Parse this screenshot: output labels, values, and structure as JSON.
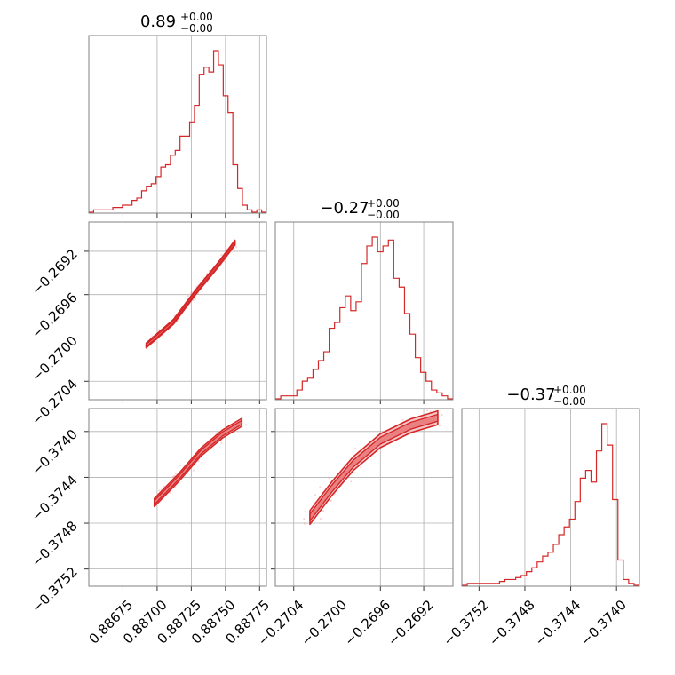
{
  "chart_data": {
    "type": "corner",
    "parameters": [
      {
        "title_value": "0.89",
        "title_plus": "+0.00",
        "title_minus": "−0.00",
        "range": [
          0.8865,
          0.8878
        ],
        "ticks": [
          0.88675,
          0.887,
          0.88725,
          0.8875,
          0.88775
        ],
        "tick_labels": [
          "0.88675",
          "0.88700",
          "0.88725",
          "0.88750",
          "0.88775"
        ],
        "hist_counts": [
          0,
          1,
          1,
          1,
          1,
          2,
          2,
          3,
          3,
          5,
          6,
          9,
          11,
          12,
          15,
          19,
          20,
          24,
          26,
          32,
          32,
          38,
          45,
          58,
          61,
          59,
          68,
          62,
          49,
          42,
          20,
          10,
          3,
          1,
          0,
          1,
          0
        ]
      },
      {
        "title_value": "−0.27",
        "title_plus": "+0.00",
        "title_minus": "−0.00",
        "range": [
          -0.27057,
          -0.26893
        ],
        "ticks": [
          -0.2704,
          -0.27,
          -0.2696,
          -0.2692
        ],
        "tick_labels": [
          "−0.2704",
          "−0.2700",
          "−0.2696",
          "−0.2692"
        ],
        "hist_counts": [
          0,
          1,
          1,
          1,
          3,
          6,
          7,
          10,
          13,
          16,
          24,
          26,
          31,
          35,
          30,
          33,
          46,
          52,
          55,
          50,
          52,
          54,
          41,
          38,
          29,
          22,
          14,
          9,
          6,
          3,
          2,
          1,
          0
        ]
      },
      {
        "title_value": "−0.37",
        "title_plus": "+0.00",
        "title_minus": "−0.00",
        "range": [
          -0.37535,
          -0.3738
        ],
        "ticks": [
          -0.3752,
          -0.3748,
          -0.3744,
          -0.374
        ],
        "tick_labels": [
          "−0.3752",
          "−0.3748",
          "−0.3744",
          "−0.3740"
        ],
        "hist_counts": [
          0,
          1,
          1,
          1,
          1,
          1,
          1,
          2,
          3,
          3,
          4,
          5,
          7,
          9,
          12,
          15,
          17,
          21,
          26,
          30,
          34,
          43,
          55,
          59,
          53,
          69,
          83,
          72,
          44,
          13,
          3,
          1,
          0
        ]
      }
    ],
    "pairs": [
      {
        "x": 0,
        "y": 1,
        "ridge": [
          [
            0.88692,
            -0.27007
          ],
          [
            0.88712,
            -0.26985
          ],
          [
            0.88728,
            -0.26958
          ],
          [
            0.88745,
            -0.26932
          ],
          [
            0.88757,
            -0.26912
          ]
        ],
        "outer_halfwidth": 2.2e-05,
        "inner_halfwidth": 1.1e-05
      },
      {
        "x": 0,
        "y": 2,
        "ridge": [
          [
            0.88698,
            -0.37462
          ],
          [
            0.88716,
            -0.3744
          ],
          [
            0.88732,
            -0.37418
          ],
          [
            0.88748,
            -0.37402
          ],
          [
            0.88762,
            -0.37392
          ]
        ],
        "outer_halfwidth": 3.5e-05,
        "inner_halfwidth": 1.7e-05
      },
      {
        "x": 1,
        "y": 2,
        "ridge": [
          [
            -0.27025,
            -0.37475
          ],
          [
            -0.27005,
            -0.3745
          ],
          [
            -0.26985,
            -0.37428
          ],
          [
            -0.2696,
            -0.37408
          ],
          [
            -0.26932,
            -0.37395
          ],
          [
            -0.26907,
            -0.37388
          ]
        ],
        "outer_halfwidth": 6e-05,
        "inner_halfwidth": 3e-05
      }
    ],
    "grid": true,
    "color": "#d62728"
  }
}
